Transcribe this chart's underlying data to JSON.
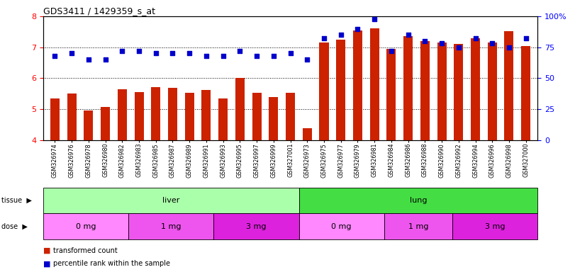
{
  "title": "GDS3411 / 1429359_s_at",
  "samples": [
    "GSM326974",
    "GSM326976",
    "GSM326978",
    "GSM326980",
    "GSM326982",
    "GSM326983",
    "GSM326985",
    "GSM326987",
    "GSM326989",
    "GSM326991",
    "GSM326993",
    "GSM326995",
    "GSM326997",
    "GSM326999",
    "GSM327001",
    "GSM326973",
    "GSM326975",
    "GSM326977",
    "GSM326979",
    "GSM326981",
    "GSM326984",
    "GSM326986",
    "GSM326988",
    "GSM326990",
    "GSM326992",
    "GSM326994",
    "GSM326996",
    "GSM326998",
    "GSM327000"
  ],
  "bar_values": [
    5.35,
    5.5,
    4.95,
    5.08,
    5.65,
    5.55,
    5.72,
    5.68,
    5.52,
    5.62,
    5.35,
    6.02,
    5.52,
    5.38,
    5.52,
    4.38,
    7.15,
    7.25,
    7.55,
    7.62,
    6.95,
    7.35,
    7.2,
    7.15,
    7.1,
    7.28,
    7.15,
    7.52,
    7.05
  ],
  "dot_values": [
    68,
    70,
    65,
    65,
    72,
    72,
    70,
    70,
    70,
    68,
    68,
    72,
    68,
    68,
    70,
    65,
    82,
    85,
    90,
    98,
    72,
    85,
    80,
    78,
    75,
    82,
    78,
    75,
    82
  ],
  "tissue_groups": [
    {
      "label": "liver",
      "start": 0,
      "end": 15,
      "color": "#AAFFAA"
    },
    {
      "label": "lung",
      "start": 15,
      "end": 29,
      "color": "#44DD44"
    }
  ],
  "dose_groups": [
    {
      "label": "0 mg",
      "start": 0,
      "end": 5,
      "color": "#FF88FF"
    },
    {
      "label": "1 mg",
      "start": 5,
      "end": 10,
      "color": "#EE55EE"
    },
    {
      "label": "3 mg",
      "start": 10,
      "end": 15,
      "color": "#DD22DD"
    },
    {
      "label": "0 mg",
      "start": 15,
      "end": 20,
      "color": "#FF88FF"
    },
    {
      "label": "1 mg",
      "start": 20,
      "end": 24,
      "color": "#EE55EE"
    },
    {
      "label": "3 mg",
      "start": 24,
      "end": 29,
      "color": "#DD22DD"
    }
  ],
  "ylim_left": [
    4,
    8
  ],
  "ylim_right": [
    0,
    100
  ],
  "yticks_left": [
    4,
    5,
    6,
    7,
    8
  ],
  "yticks_right": [
    0,
    25,
    50,
    75,
    100
  ],
  "bar_color": "#CC2200",
  "dot_color": "#0000CC",
  "bar_bottom": 4,
  "grid_yticks": [
    5,
    6,
    7
  ]
}
